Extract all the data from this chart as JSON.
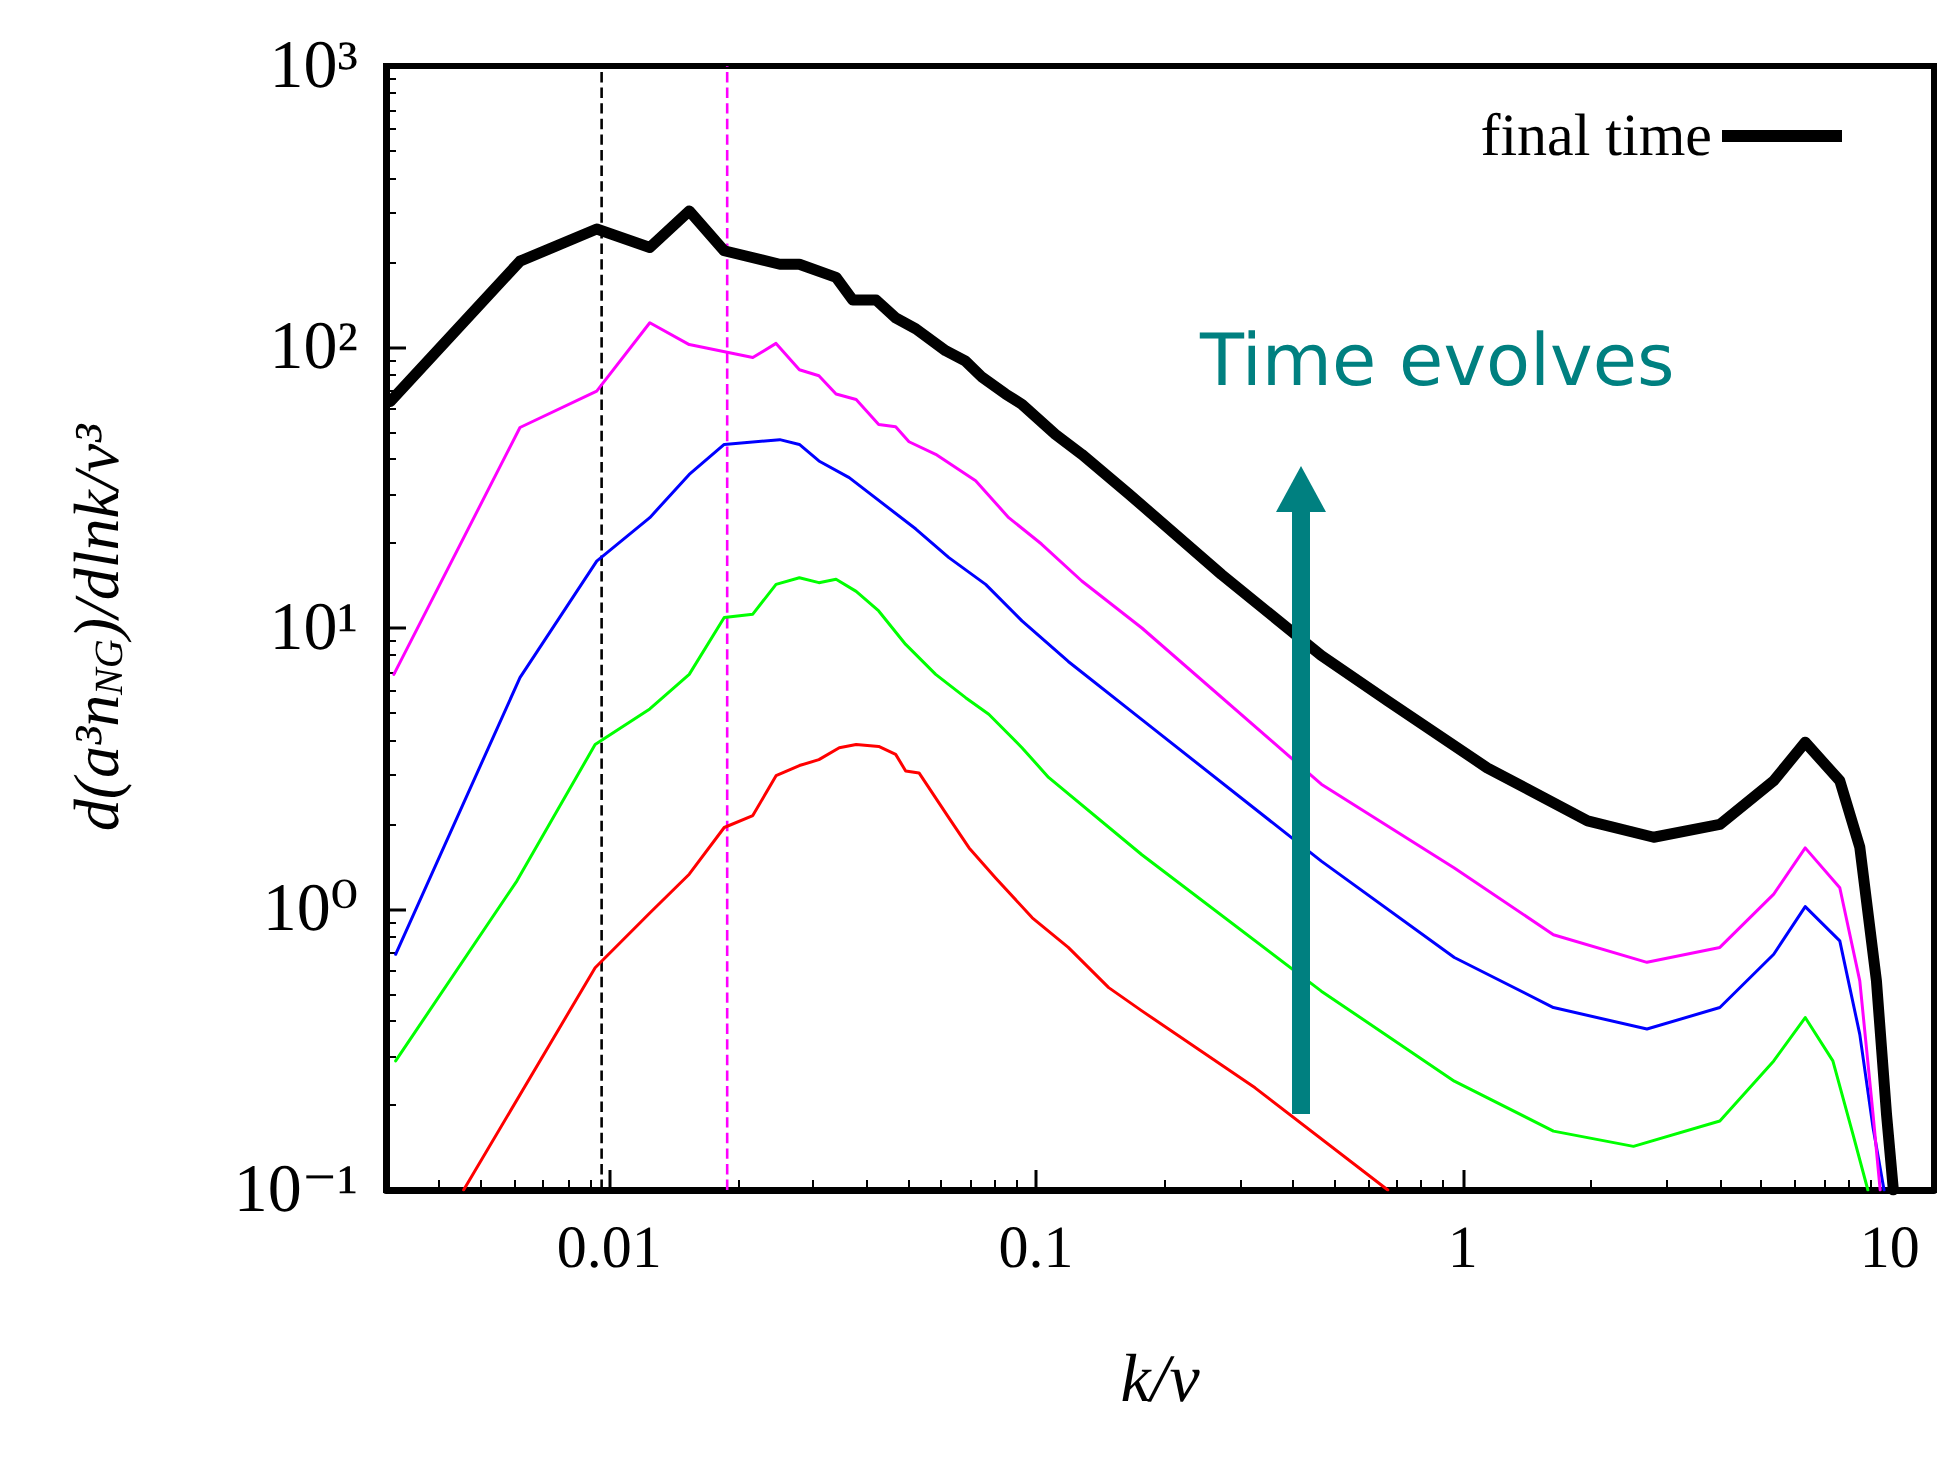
{
  "chart_data": {
    "type": "line",
    "xlabel": "k/v",
    "ylabel": "d(a³n$_{NG}$)/dlnk/v³",
    "log": "xy",
    "grid": false,
    "legend": "top right",
    "marker": "none",
    "line_style": "solid",
    "xlim": [
      0.003,
      12.7
    ],
    "ylim": [
      0.1,
      1000
    ],
    "xticks": [
      0.01,
      0.1,
      1,
      10
    ],
    "yticks": [
      {
        "value": 0.1,
        "label": "10⁻¹"
      },
      {
        "value": 1,
        "label": "10⁰"
      },
      {
        "value": 10,
        "label": "10¹"
      },
      {
        "value": 100,
        "label": "10²"
      },
      {
        "value": 1000,
        "label": "10³"
      }
    ],
    "annotations": [
      "Time evolves"
    ],
    "ref_lines": [
      {
        "axis": "x",
        "value": 0.0096,
        "color": "#000000",
        "line_style": "dashed"
      },
      {
        "axis": "x",
        "value": 0.0189,
        "color": "#ff00ff",
        "line_style": "dashed"
      }
    ],
    "series": [
      {
        "color": "#ff0000",
        "x": [
          0.00456,
          0.00927,
          0.01245,
          0.0154,
          0.0186,
          0.0217,
          0.0246,
          0.0279,
          0.031,
          0.0346,
          0.0379,
          0.0428,
          0.0469,
          0.0495,
          0.0532,
          0.0625,
          0.0697,
          0.0804,
          0.098,
          0.119,
          0.148,
          0.177,
          0.326,
          0.667
        ],
        "values": [
          0.1,
          0.618,
          0.968,
          1.33,
          1.95,
          2.15,
          2.98,
          3.24,
          3.4,
          3.75,
          3.85,
          3.79,
          3.55,
          3.1,
          3.05,
          2.11,
          1.65,
          1.29,
          0.93,
          0.73,
          0.525,
          0.434,
          0.231,
          0.1
        ]
      },
      {
        "color": "#00ff00",
        "x": [
          0.00316,
          0.00608,
          0.00927,
          0.01245,
          0.0154,
          0.0186,
          0.0217,
          0.0246,
          0.0279,
          0.031,
          0.034,
          0.0379,
          0.0428,
          0.0495,
          0.0582,
          0.0684,
          0.0775,
          0.0927,
          0.107,
          0.177,
          0.466,
          0.955,
          1.63,
          2.51,
          4.0,
          5.35,
          6.34,
          7.36,
          8.2,
          8.89
        ],
        "values": [
          0.288,
          1.26,
          3.85,
          5.15,
          6.84,
          10.9,
          11.2,
          14.3,
          15.1,
          14.5,
          14.9,
          13.5,
          11.5,
          8.74,
          6.84,
          5.65,
          4.93,
          3.75,
          2.94,
          1.56,
          0.51,
          0.244,
          0.162,
          0.143,
          0.176,
          0.288,
          0.411,
          0.288,
          0.158,
          0.1
        ]
      },
      {
        "color": "#0000ff",
        "x": [
          0.00316,
          0.00618,
          0.00935,
          0.01245,
          0.0154,
          0.0186,
          0.0251,
          0.0279,
          0.031,
          0.0365,
          0.0523,
          0.0625,
          0.0762,
          0.0927,
          0.119,
          0.177,
          0.466,
          0.955,
          1.63,
          2.7,
          4.0,
          5.35,
          6.34,
          7.64,
          8.51,
          9.14,
          9.7
        ],
        "values": [
          0.69,
          6.66,
          17.3,
          24.7,
          35.2,
          45,
          46.8,
          45,
          39.3,
          34.3,
          22.5,
          17.8,
          14.3,
          10.6,
          7.6,
          4.72,
          1.48,
          0.672,
          0.446,
          0.374,
          0.446,
          0.69,
          1.02,
          0.77,
          0.358,
          0.167,
          0.1
        ]
      },
      {
        "color": "#ff00ff",
        "x": [
          0.00313,
          0.00618,
          0.00935,
          0.01245,
          0.0154,
          0.0217,
          0.0246,
          0.0279,
          0.031,
          0.034,
          0.0379,
          0.0428,
          0.0469,
          0.0504,
          0.0582,
          0.0722,
          0.0863,
          0.103,
          0.128,
          0.177,
          0.466,
          0.955,
          1.63,
          2.7,
          4.0,
          5.35,
          6.34,
          7.64,
          8.51,
          9.14,
          9.5
        ],
        "values": [
          6.84,
          51.7,
          69.7,
          122,
          102,
          91.7,
          103,
          83,
          79,
          68,
          65,
          53,
          52,
          46,
          41.5,
          33.4,
          24.7,
          19.9,
          14.7,
          10,
          2.78,
          1.4,
          0.81,
          0.646,
          0.73,
          1.13,
          1.65,
          1.19,
          0.555,
          0.186,
          0.1
        ]
      },
      {
        "name": "final time",
        "color": "#000000",
        "x": [
          0.00307,
          0.00618,
          0.00935,
          0.01245,
          0.0154,
          0.0186,
          0.0251,
          0.0279,
          0.034,
          0.0372,
          0.0422,
          0.0469,
          0.0523,
          0.0614,
          0.0684,
          0.0748,
          0.0849,
          0.0927,
          0.111,
          0.128,
          0.165,
          0.272,
          0.466,
          0.667,
          1.14,
          1.96,
          2.8,
          4.0,
          5.35,
          6.34,
          7.64,
          8.51,
          9.31,
          9.83,
          10.2
        ],
        "values": [
          64,
          202,
          263,
          226,
          305,
          220,
          197,
          197,
          177,
          147,
          147,
          127,
          116,
          97,
          89,
          78,
          68,
          62.5,
          48.9,
          41.5,
          30,
          15.5,
          7.98,
          5.5,
          3.18,
          2.06,
          1.8,
          2,
          2.86,
          3.92,
          2.86,
          1.66,
          0.555,
          0.186,
          0.1
        ]
      }
    ]
  }
}
